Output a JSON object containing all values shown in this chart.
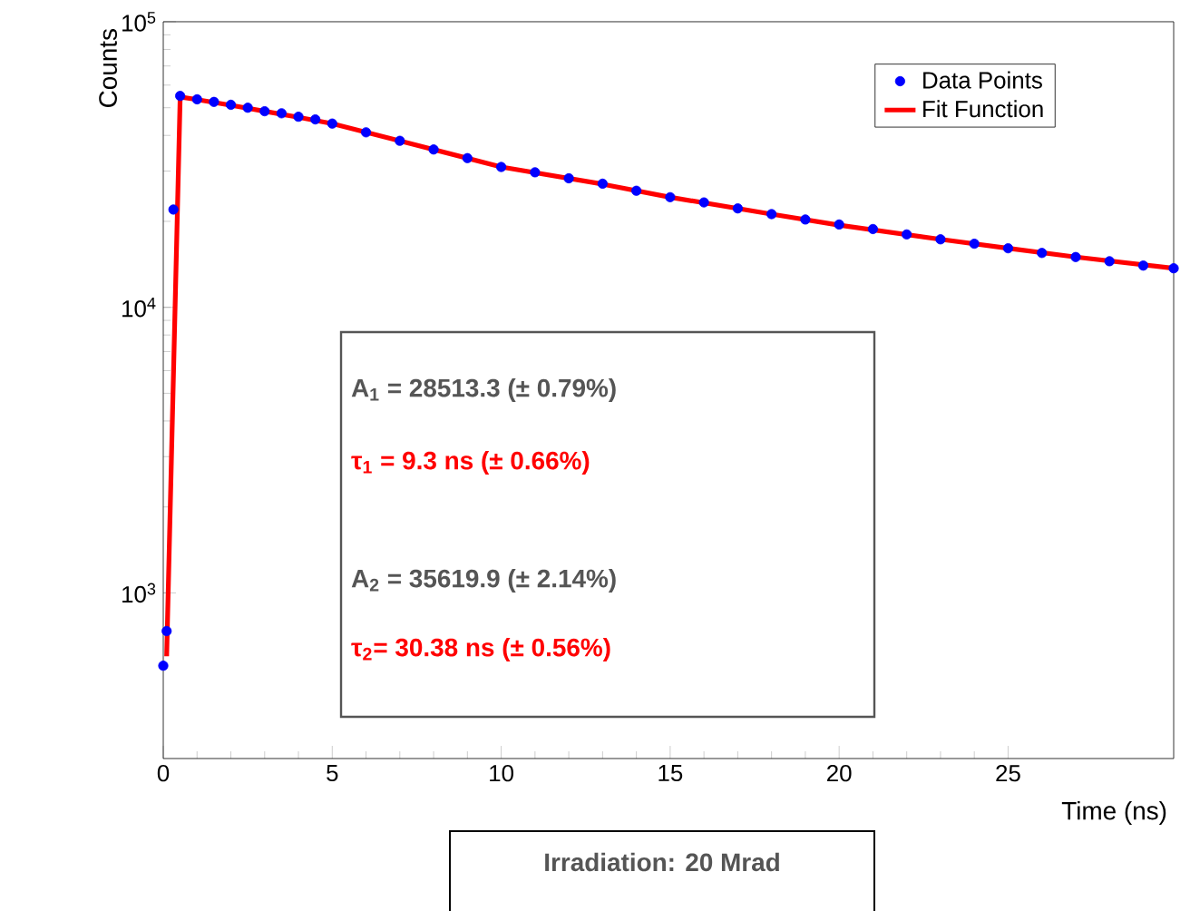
{
  "chart_data": {
    "type": "scatter",
    "xlabel": "Time (ns)",
    "ylabel": "Counts",
    "log": "y",
    "xlim": [
      0,
      29.9
    ],
    "ylim": [
      263,
      100000
    ],
    "xticks": [
      0,
      5,
      10,
      15,
      20,
      25
    ],
    "yticks": [
      {
        "value": 1000,
        "label": "10$^{3}$"
      },
      {
        "value": 10000,
        "label": "10$^{4}$"
      },
      {
        "value": 100000,
        "label": "10$^{5}$"
      }
    ],
    "legend": "top right",
    "grid": false,
    "series": [
      {
        "name": "Data Points",
        "marker": "circle",
        "color": "#0000ff",
        "x": [
          0,
          0.1,
          0.3,
          0.5,
          1,
          1.5,
          2,
          2.5,
          3,
          3.5,
          4,
          4.5,
          5,
          6,
          7,
          8,
          9,
          10,
          11,
          12,
          13,
          14,
          15,
          16,
          17,
          18,
          19,
          20,
          21,
          22,
          23,
          24,
          25,
          26,
          27,
          28,
          29,
          29.9
        ],
        "values": [
          556,
          735,
          22000,
          55000,
          53500,
          52400,
          51200,
          50000,
          48600,
          47800,
          46500,
          45500,
          44000,
          41000,
          38300,
          35700,
          33300,
          31000,
          29700,
          28300,
          27100,
          25600,
          24300,
          23300,
          22200,
          21200,
          20300,
          19500,
          18800,
          18000,
          17300,
          16700,
          16100,
          15500,
          15000,
          14500,
          14000,
          13700
        ]
      },
      {
        "name": "Fit Function",
        "type": "line",
        "marker": "none",
        "color": "#ff0000",
        "line_style": "solid",
        "x": [
          0.1,
          0.5,
          1,
          2,
          3,
          4,
          5,
          7,
          10,
          13,
          15,
          18,
          20,
          23,
          25,
          27,
          29.9
        ],
        "values": [
          600,
          54500,
          53400,
          51000,
          48600,
          46300,
          44000,
          38300,
          31000,
          27000,
          24300,
          21200,
          19400,
          17300,
          16100,
          15000,
          13700
        ]
      }
    ],
    "annotations": [
      "A$_{1}$ = 28513.3 (± 0.79%)",
      "τ$_{1}$ = 9.3 ns (± 0.66%)",
      "A$_{2}$ = 35619.9 (± 2.14%)",
      "τ$_{2}$= 30.38 ns (± 0.56%)",
      "Irradiation: 20 Mrad"
    ]
  }
}
